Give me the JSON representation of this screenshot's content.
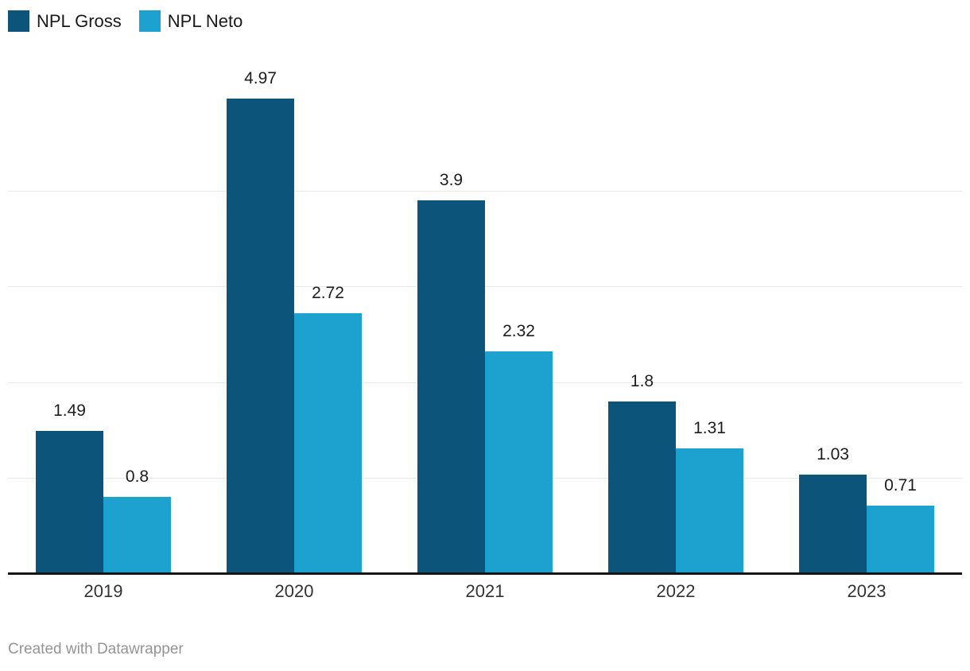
{
  "footer": {
    "text": "Created with Datawrapper"
  },
  "colors": {
    "npl_gross": "#0d547b",
    "npl_neto": "#1da1cf",
    "grid": "#e8e8e8",
    "axis": "#161616",
    "value_label": "#1d1d1d",
    "tick_label": "#333333",
    "footer_text": "#949494",
    "background": "#ffffff"
  },
  "chart_data": {
    "type": "bar",
    "title": "",
    "xlabel": "",
    "ylabel": "",
    "categories": [
      "2019",
      "2020",
      "2021",
      "2022",
      "2023"
    ],
    "series": [
      {
        "name": "NPL Gross",
        "color": "#0d547b",
        "values": [
          1.49,
          4.97,
          3.9,
          1.8,
          1.03
        ],
        "labels": [
          "1.49",
          "4.97",
          "3.9",
          "1.8",
          "1.03"
        ]
      },
      {
        "name": "NPL Neto",
        "color": "#1da1cf",
        "values": [
          0.8,
          2.72,
          2.32,
          1.31,
          0.71
        ],
        "labels": [
          "0.8",
          "2.72",
          "2.32",
          "1.31",
          "0.71"
        ]
      }
    ],
    "ylim": [
      0,
      5
    ],
    "gridlines": [
      1,
      2,
      3,
      4
    ],
    "grid": "horizontal",
    "legend_position": "top-left",
    "value_labels_shown": true,
    "y_axis_labels_shown": false
  }
}
